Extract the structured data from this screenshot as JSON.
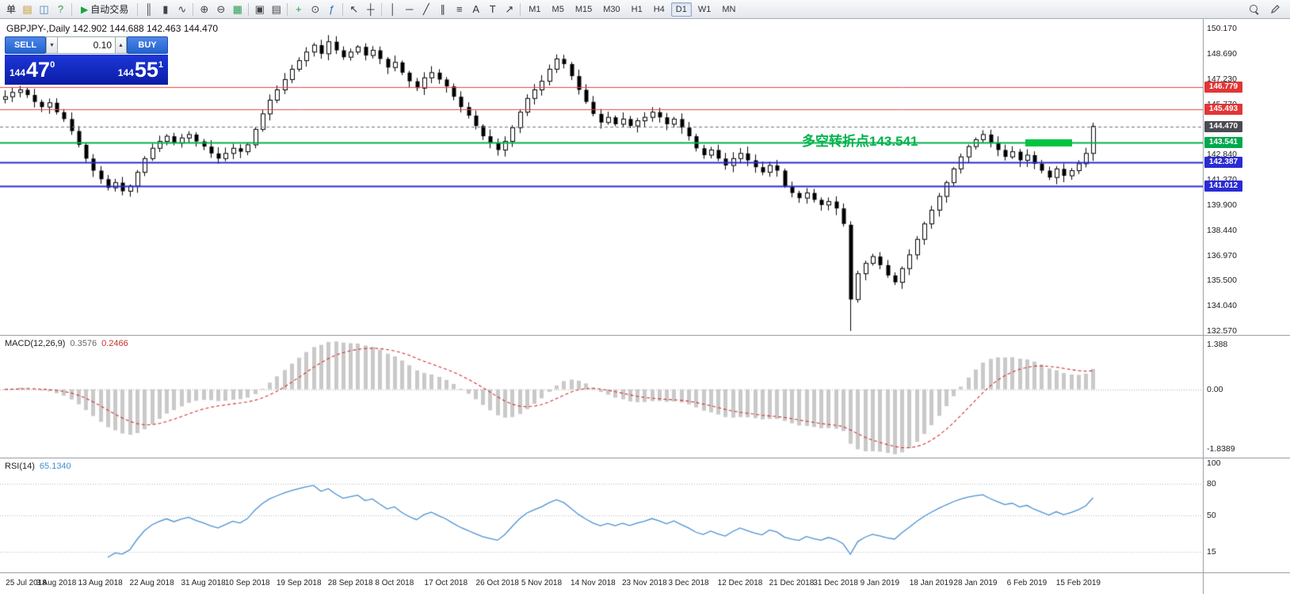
{
  "toolbar": {
    "items": [
      {
        "kind": "text",
        "name": "menu-fragment",
        "text": "单"
      },
      {
        "kind": "icon",
        "name": "new-order-icon",
        "glyph": "▤",
        "color": "#c59a2f"
      },
      {
        "kind": "icon",
        "name": "chart-window-icon",
        "glyph": "◫",
        "color": "#4f81bd"
      },
      {
        "kind": "icon",
        "name": "help-icon",
        "glyph": "?",
        "color": "#2e9e4f"
      },
      {
        "kind": "sep"
      },
      {
        "kind": "button",
        "name": "autotrading-button",
        "glyph": "▶",
        "glyph_color": "#19a53c",
        "label": "自动交易"
      },
      {
        "kind": "sep"
      },
      {
        "kind": "icon",
        "name": "bar-chart-icon",
        "glyph": "║",
        "color": "#444444"
      },
      {
        "kind": "icon",
        "name": "candlestick-chart-icon",
        "glyph": "▮",
        "color": "#444444"
      },
      {
        "kind": "icon",
        "name": "line-chart-icon",
        "glyph": "∿",
        "color": "#444444"
      },
      {
        "kind": "sep"
      },
      {
        "kind": "icon",
        "name": "zoom-in-icon",
        "glyph": "⊕",
        "color": "#444444"
      },
      {
        "kind": "icon",
        "name": "zoom-out-icon",
        "glyph": "⊖",
        "color": "#444444"
      },
      {
        "kind": "icon",
        "name": "tile-windows-icon",
        "glyph": "▦",
        "color": "#2e9e4f"
      },
      {
        "kind": "sep"
      },
      {
        "kind": "icon",
        "name": "cascade-windows-icon",
        "glyph": "▣",
        "color": "#444444"
      },
      {
        "kind": "icon",
        "name": "tile-horizontal-icon",
        "glyph": "▤",
        "color": "#444444"
      },
      {
        "kind": "sep"
      },
      {
        "kind": "icon",
        "name": "new-chart-icon",
        "glyph": "+",
        "color": "#1f9e3f"
      },
      {
        "kind": "icon",
        "name": "period-icon",
        "glyph": "⊙",
        "color": "#444444"
      },
      {
        "kind": "icon",
        "name": "indicators-icon",
        "glyph": "ƒ",
        "color": "#2f6db5"
      },
      {
        "kind": "sep"
      },
      {
        "kind": "icon",
        "name": "cursor-icon",
        "glyph": "↖",
        "color": "#333333"
      },
      {
        "kind": "icon",
        "name": "crosshair-icon",
        "glyph": "┼",
        "color": "#333333"
      },
      {
        "kind": "sep"
      },
      {
        "kind": "icon",
        "name": "vertical-line-icon",
        "glyph": "│",
        "color": "#333333"
      },
      {
        "kind": "icon",
        "name": "horizontal-line-icon",
        "glyph": "─",
        "color": "#333333"
      },
      {
        "kind": "icon",
        "name": "trendline-icon",
        "glyph": "╱",
        "color": "#333333"
      },
      {
        "kind": "icon",
        "name": "channel-icon",
        "glyph": "∥",
        "color": "#333333"
      },
      {
        "kind": "icon",
        "name": "fibonacci-icon",
        "glyph": "≡",
        "color": "#333333"
      },
      {
        "kind": "icon",
        "name": "text-icon",
        "glyph": "A",
        "color": "#333333"
      },
      {
        "kind": "icon",
        "name": "text-label-icon",
        "glyph": "T",
        "color": "#333333"
      },
      {
        "kind": "icon",
        "name": "arrows-icon",
        "glyph": "↗",
        "color": "#333333"
      },
      {
        "kind": "sep"
      },
      {
        "kind": "timeframes"
      }
    ],
    "timeframes": [
      "M1",
      "M5",
      "M15",
      "M30",
      "H1",
      "H4",
      "D1",
      "W1",
      "MN"
    ],
    "active_timeframe": "D1"
  },
  "symbol_header": {
    "text": "GBPJPY-,Daily  142.902 144.688 142.463 144.470"
  },
  "trade_panel": {
    "sell_label": "SELL",
    "buy_label": "BUY",
    "lot_size": "0.10",
    "dropdown_glyph": "▼",
    "spinner_up_glyph": "▲",
    "sell_price": {
      "big": "144",
      "pips": "47",
      "pt": "0"
    },
    "buy_price": {
      "big": "144",
      "pips": "55",
      "pt": "1"
    }
  },
  "annotation": {
    "text": "多空转折点143.541",
    "color": "#00b34a"
  },
  "price_axis": {
    "ticks": [
      {
        "text": "150.170",
        "value": 150.17
      },
      {
        "text": "148.690",
        "value": 148.69
      },
      {
        "text": "147.230",
        "value": 147.23
      },
      {
        "text": "145.770",
        "value": 145.77
      },
      {
        "text": "144.300",
        "value": 144.3
      },
      {
        "text": "142.840",
        "value": 142.84
      },
      {
        "text": "141.370",
        "value": 141.37
      },
      {
        "text": "139.900",
        "value": 139.9
      },
      {
        "text": "138.440",
        "value": 138.44
      },
      {
        "text": "136.970",
        "value": 136.97
      },
      {
        "text": "135.500",
        "value": 135.5
      },
      {
        "text": "134.040",
        "value": 134.04
      },
      {
        "text": "132.570",
        "value": 132.57
      }
    ],
    "tags": [
      {
        "text": "146.779",
        "value": 146.779,
        "bg": "#e03636"
      },
      {
        "text": "145.493",
        "value": 145.493,
        "bg": "#e03636"
      },
      {
        "text": "144.470",
        "value": 144.47,
        "bg": "#4a4a52"
      },
      {
        "text": "143.541",
        "value": 143.541,
        "bg": "#00a84e"
      },
      {
        "text": "142.387",
        "value": 142.387,
        "bg": "#2b2bd4"
      },
      {
        "text": "141.012",
        "value": 141.012,
        "bg": "#2b2bd4"
      }
    ]
  },
  "levels": [
    {
      "value": 146.779,
      "color": "#f04040",
      "width": 1,
      "dash": false
    },
    {
      "value": 145.493,
      "color": "#f04040",
      "width": 1,
      "dash": false
    },
    {
      "value": 144.47,
      "color": "#777777",
      "width": 1,
      "dash": true
    },
    {
      "value": 143.541,
      "color": "#00b24e",
      "width": 2,
      "dash": false
    },
    {
      "value": 142.387,
      "color": "#2b2bd4",
      "width": 2,
      "dash": false
    },
    {
      "value": 141.012,
      "color": "#2b2bd4",
      "width": 2,
      "dash": false
    }
  ],
  "highlight_bar": {
    "start_index": 138.8,
    "end_index": 145.2,
    "price_top": 143.74,
    "price_bottom": 143.32,
    "color": "#00c441"
  },
  "chart_data": {
    "type": "candlestick",
    "symbol": "GBPJPY-",
    "timeframe": "Daily",
    "title": "GBPJPY-,Daily",
    "current_candle": {
      "open": 142.902,
      "high": 144.688,
      "low": 142.463,
      "close": 144.47
    },
    "price_range": {
      "min": 132.57,
      "max": 150.17
    },
    "grid": "off",
    "closes": [
      146.2,
      146.45,
      146.6,
      146.3,
      145.9,
      145.6,
      145.85,
      145.3,
      144.9,
      144.2,
      143.4,
      142.6,
      141.9,
      141.4,
      140.9,
      141.2,
      140.7,
      141.0,
      141.8,
      142.6,
      143.2,
      143.6,
      143.9,
      143.5,
      143.8,
      144.0,
      143.6,
      143.3,
      142.9,
      142.6,
      142.9,
      143.2,
      143.0,
      143.4,
      144.3,
      145.2,
      146.0,
      146.6,
      147.2,
      147.8,
      148.3,
      148.8,
      149.2,
      148.7,
      149.4,
      148.9,
      148.5,
      148.8,
      149.1,
      148.6,
      148.9,
      148.4,
      147.9,
      148.2,
      147.6,
      147.1,
      146.7,
      147.3,
      147.6,
      147.2,
      146.8,
      146.2,
      145.6,
      145.1,
      144.5,
      143.9,
      143.5,
      143.1,
      143.6,
      144.4,
      145.3,
      146.1,
      146.6,
      147.1,
      147.8,
      148.4,
      148.1,
      147.4,
      146.6,
      145.9,
      145.2,
      144.7,
      145.0,
      144.6,
      144.9,
      144.5,
      144.8,
      145.0,
      145.3,
      145.0,
      144.6,
      144.9,
      144.4,
      143.9,
      143.2,
      142.8,
      143.1,
      142.6,
      142.2,
      142.6,
      142.9,
      142.5,
      142.1,
      141.8,
      142.2,
      141.9,
      141.0,
      140.6,
      140.3,
      140.6,
      140.2,
      139.9,
      140.1,
      139.7,
      138.8,
      134.4,
      135.9,
      136.5,
      136.9,
      136.4,
      135.8,
      135.4,
      136.2,
      137.0,
      137.9,
      138.8,
      139.6,
      140.4,
      141.2,
      142.0,
      142.7,
      143.3,
      143.7,
      144.0,
      143.5,
      143.1,
      142.7,
      143.0,
      142.5,
      142.8,
      142.3,
      141.9,
      141.5,
      142.0,
      141.6,
      141.9,
      142.3,
      142.9,
      144.47
    ],
    "candle_overrides": {
      "115": [
        138.75,
        138.95,
        132.57,
        134.4
      ],
      "148": [
        142.902,
        144.688,
        142.463,
        144.47
      ]
    },
    "indicators": [
      {
        "name": "MACD",
        "params": [
          12,
          26,
          9
        ],
        "main": 0.3576,
        "signal": 0.2466,
        "range": [
          -1.8389,
          1.388
        ]
      },
      {
        "name": "RSI",
        "params": [
          14
        ],
        "value": 65.134,
        "levels": [
          80,
          50,
          15
        ]
      }
    ]
  },
  "macd_panel": {
    "label": "MACD(12,26,9)",
    "main_value": "0.3576",
    "signal_value": "0.2466",
    "axis": [
      {
        "text": "1.388",
        "value": 1.388
      },
      {
        "text": "0.00",
        "value": 0
      },
      {
        "text": "-1.8389",
        "value": -1.8389
      }
    ]
  },
  "rsi_panel": {
    "label": "RSI(14)",
    "value": "65.1340",
    "axis": [
      {
        "text": "100",
        "value": 100
      },
      {
        "text": "80",
        "value": 80
      },
      {
        "text": "50",
        "value": 50
      },
      {
        "text": "15",
        "value": 15
      }
    ],
    "levels": [
      80,
      50,
      15
    ]
  },
  "date_axis": {
    "labels": [
      {
        "text": "25 Jul 2018",
        "index": 0
      },
      {
        "text": "3 Aug 2018",
        "index": 7
      },
      {
        "text": "13 Aug 2018",
        "index": 13
      },
      {
        "text": "22 Aug 2018",
        "index": 20
      },
      {
        "text": "31 Aug 2018",
        "index": 27
      },
      {
        "text": "10 Sep 2018",
        "index": 33
      },
      {
        "text": "19 Sep 2018",
        "index": 40
      },
      {
        "text": "28 Sep 2018",
        "index": 47
      },
      {
        "text": "8 Oct 2018",
        "index": 53
      },
      {
        "text": "17 Oct 2018",
        "index": 60
      },
      {
        "text": "26 Oct 2018",
        "index": 67
      },
      {
        "text": "5 Nov 2018",
        "index": 73
      },
      {
        "text": "14 Nov 2018",
        "index": 80
      },
      {
        "text": "23 Nov 2018",
        "index": 87
      },
      {
        "text": "3 Dec 2018",
        "index": 93
      },
      {
        "text": "12 Dec 2018",
        "index": 100
      },
      {
        "text": "21 Dec 2018",
        "index": 107
      },
      {
        "text": "31 Dec 2018",
        "index": 113
      },
      {
        "text": "9 Jan 2019",
        "index": 119
      },
      {
        "text": "18 Jan 2019",
        "index": 126
      },
      {
        "text": "28 Jan 2019",
        "index": 132
      },
      {
        "text": "6 Feb 2019",
        "index": 139
      },
      {
        "text": "15 Feb 2019",
        "index": 146
      }
    ]
  }
}
